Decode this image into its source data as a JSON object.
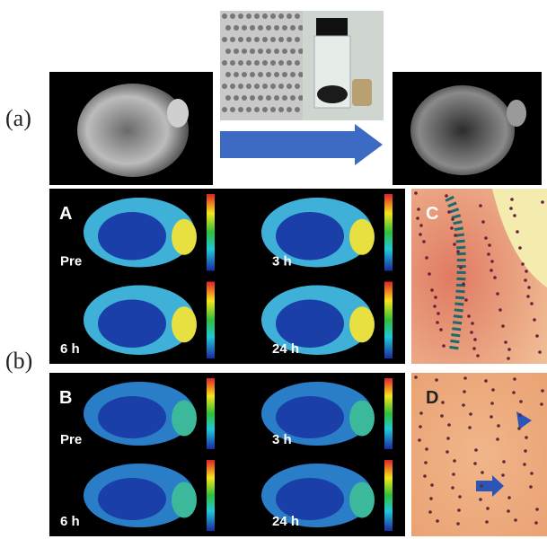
{
  "label_a": "(a)",
  "label_b": "(b)",
  "panels": [
    {
      "letter": "A",
      "timepoints": [
        "Pre",
        "3 h",
        "6 h",
        "24 h"
      ]
    },
    {
      "letter": "B",
      "timepoints": [
        "Pre",
        "3 h",
        "6 h",
        "24 h"
      ]
    }
  ],
  "histology": [
    "C",
    "D"
  ]
}
